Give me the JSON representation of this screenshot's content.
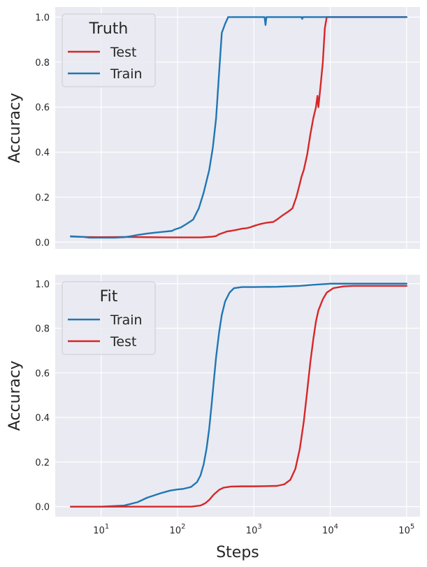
{
  "chart_data": [
    {
      "type": "line",
      "legend_title": "Truth",
      "ylabel": "Accuracy",
      "xlabel": "",
      "xscale": "log",
      "xlim": [
        2.5,
        150000
      ],
      "ylim": [
        -0.03,
        1.045
      ],
      "grid": true,
      "legend_placement": "top-left",
      "series": [
        {
          "name": "Test",
          "color": "#d62728",
          "points": [
            [
              4,
              0.025
            ],
            [
              6,
              0.023
            ],
            [
              10,
              0.022
            ],
            [
              20,
              0.023
            ],
            [
              40,
              0.022
            ],
            [
              80,
              0.021
            ],
            [
              150,
              0.021
            ],
            [
              200,
              0.021
            ],
            [
              280,
              0.024
            ],
            [
              320,
              0.027
            ],
            [
              350,
              0.035
            ],
            [
              400,
              0.042
            ],
            [
              450,
              0.048
            ],
            [
              500,
              0.05
            ],
            [
              600,
              0.055
            ],
            [
              700,
              0.06
            ],
            [
              800,
              0.062
            ],
            [
              900,
              0.066
            ],
            [
              1000,
              0.072
            ],
            [
              1200,
              0.08
            ],
            [
              1400,
              0.085
            ],
            [
              1600,
              0.088
            ],
            [
              1800,
              0.09
            ],
            [
              2000,
              0.1
            ],
            [
              2400,
              0.12
            ],
            [
              2800,
              0.135
            ],
            [
              3200,
              0.15
            ],
            [
              3600,
              0.2
            ],
            [
              4000,
              0.26
            ],
            [
              4200,
              0.29
            ],
            [
              4500,
              0.32
            ],
            [
              5000,
              0.39
            ],
            [
              5500,
              0.48
            ],
            [
              6000,
              0.55
            ],
            [
              6500,
              0.6
            ],
            [
              6800,
              0.65
            ],
            [
              7000,
              0.6
            ],
            [
              7500,
              0.7
            ],
            [
              8000,
              0.8
            ],
            [
              8500,
              0.95
            ],
            [
              9000,
              1.0
            ],
            [
              10000,
              1.0
            ],
            [
              20000,
              1.0
            ],
            [
              50000,
              1.0
            ],
            [
              100000,
              1.0
            ]
          ]
        },
        {
          "name": "Train",
          "color": "#1f77b4",
          "points": [
            [
              4,
              0.026
            ],
            [
              6,
              0.023
            ],
            [
              7,
              0.02
            ],
            [
              10,
              0.02
            ],
            [
              15,
              0.02
            ],
            [
              20,
              0.022
            ],
            [
              25,
              0.027
            ],
            [
              30,
              0.032
            ],
            [
              40,
              0.038
            ],
            [
              50,
              0.042
            ],
            [
              70,
              0.047
            ],
            [
              85,
              0.05
            ],
            [
              90,
              0.055
            ],
            [
              110,
              0.065
            ],
            [
              130,
              0.08
            ],
            [
              160,
              0.1
            ],
            [
              190,
              0.15
            ],
            [
              220,
              0.22
            ],
            [
              260,
              0.32
            ],
            [
              290,
              0.42
            ],
            [
              320,
              0.55
            ],
            [
              350,
              0.75
            ],
            [
              380,
              0.93
            ],
            [
              420,
              0.97
            ],
            [
              460,
              1.0
            ],
            [
              1000,
              1.0
            ],
            [
              1380,
              1.0
            ],
            [
              1420,
              0.965
            ],
            [
              1460,
              1.0
            ],
            [
              4200,
              1.0
            ],
            [
              4300,
              0.992
            ],
            [
              4400,
              1.0
            ],
            [
              10000,
              1.0
            ],
            [
              100000,
              1.0
            ]
          ]
        }
      ]
    },
    {
      "type": "line",
      "legend_title": "Fit",
      "ylabel": "Accuracy",
      "xlabel": "Steps",
      "xscale": "log",
      "xlim": [
        2.5,
        150000
      ],
      "ylim": [
        -0.045,
        1.04
      ],
      "grid": true,
      "legend_placement": "top-left",
      "series": [
        {
          "name": "Train",
          "color": "#1f77b4",
          "points": [
            [
              4,
              0.0
            ],
            [
              10,
              0.0
            ],
            [
              20,
              0.005
            ],
            [
              30,
              0.02
            ],
            [
              40,
              0.04
            ],
            [
              60,
              0.06
            ],
            [
              80,
              0.072
            ],
            [
              100,
              0.077
            ],
            [
              120,
              0.08
            ],
            [
              150,
              0.088
            ],
            [
              180,
              0.11
            ],
            [
              200,
              0.14
            ],
            [
              220,
              0.19
            ],
            [
              240,
              0.26
            ],
            [
              260,
              0.35
            ],
            [
              280,
              0.46
            ],
            [
              300,
              0.57
            ],
            [
              320,
              0.67
            ],
            [
              350,
              0.78
            ],
            [
              380,
              0.86
            ],
            [
              420,
              0.92
            ],
            [
              480,
              0.96
            ],
            [
              550,
              0.98
            ],
            [
              700,
              0.985
            ],
            [
              1000,
              0.985
            ],
            [
              2000,
              0.986
            ],
            [
              4000,
              0.99
            ],
            [
              6000,
              0.995
            ],
            [
              10000,
              1.0
            ],
            [
              100000,
              1.0
            ]
          ]
        },
        {
          "name": "Test",
          "color": "#d62728",
          "points": [
            [
              4,
              0.0
            ],
            [
              50,
              0.0
            ],
            [
              150,
              0.0
            ],
            [
              200,
              0.005
            ],
            [
              230,
              0.015
            ],
            [
              260,
              0.03
            ],
            [
              300,
              0.055
            ],
            [
              350,
              0.075
            ],
            [
              400,
              0.085
            ],
            [
              500,
              0.09
            ],
            [
              700,
              0.091
            ],
            [
              1000,
              0.091
            ],
            [
              2000,
              0.093
            ],
            [
              2500,
              0.1
            ],
            [
              3000,
              0.12
            ],
            [
              3500,
              0.17
            ],
            [
              4000,
              0.26
            ],
            [
              4500,
              0.38
            ],
            [
              5000,
              0.52
            ],
            [
              5500,
              0.65
            ],
            [
              6000,
              0.75
            ],
            [
              6500,
              0.83
            ],
            [
              7000,
              0.88
            ],
            [
              8000,
              0.93
            ],
            [
              9000,
              0.96
            ],
            [
              11000,
              0.98
            ],
            [
              15000,
              0.988
            ],
            [
              20000,
              0.99
            ],
            [
              100000,
              0.99
            ]
          ]
        }
      ]
    }
  ],
  "x_ticks": {
    "values": [
      10,
      100,
      1000,
      10000,
      100000
    ],
    "labels": [
      [
        "10",
        "1"
      ],
      [
        "10",
        "2"
      ],
      [
        "10",
        "3"
      ],
      [
        "10",
        "4"
      ],
      [
        "10",
        "5"
      ]
    ]
  },
  "y_ticks": {
    "values": [
      0.0,
      0.2,
      0.4,
      0.6,
      0.8,
      1.0
    ],
    "labels": [
      "0.0",
      "0.2",
      "0.4",
      "0.6",
      "0.8",
      "1.0"
    ]
  },
  "colors": {
    "panel_bg": "#eaeaf2",
    "grid": "#ffffff",
    "text": "#262626"
  }
}
